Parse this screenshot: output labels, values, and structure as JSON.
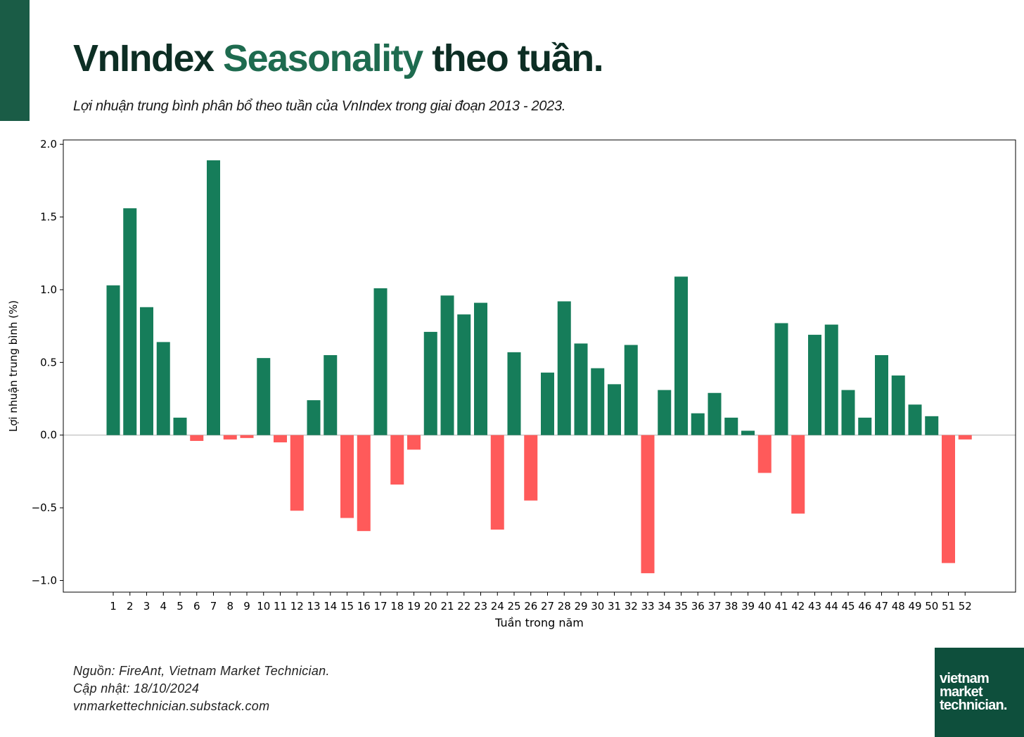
{
  "header": {
    "title_part1": "VnIndex ",
    "title_accent": "Seasonality",
    "title_part2": " theo tuần.",
    "subtitle": "Lợi nhuận trung bình phân bổ theo tuần của VnIndex trong giai đoạn 2013 - 2023."
  },
  "footer": {
    "source": "Nguồn: FireAnt, Vietnam Market Technician.",
    "updated": "Cập nhật: 18/10/2024",
    "website": "vnmarkettechnician.substack.com"
  },
  "logo": {
    "line1": "vietnam",
    "line2": "market",
    "line3": "technician."
  },
  "colors": {
    "positive": "#167d5a",
    "negative": "#ff5a5a",
    "accent": "#1e6b4f",
    "title": "#0d2e24",
    "corner": "#1a5c46",
    "logo_bg": "#0e4f3c"
  },
  "chart_data": {
    "type": "bar",
    "xlabel": "Tuần trong năm",
    "ylabel": "Lợi nhuận trung bình (%)",
    "ylim": [
      -1.08,
      2.03
    ],
    "yticks": [
      -1.0,
      -0.5,
      0.0,
      0.5,
      1.0,
      1.5,
      2.0
    ],
    "ytick_labels": [
      "−1.0",
      "−0.5",
      "0.0",
      "0.5",
      "1.0",
      "1.5",
      "2.0"
    ],
    "grid": false,
    "categories": [
      "1",
      "2",
      "3",
      "4",
      "5",
      "6",
      "7",
      "8",
      "9",
      "10",
      "11",
      "12",
      "13",
      "14",
      "15",
      "16",
      "17",
      "18",
      "19",
      "20",
      "21",
      "22",
      "23",
      "24",
      "25",
      "26",
      "27",
      "28",
      "29",
      "30",
      "31",
      "32",
      "33",
      "34",
      "35",
      "36",
      "37",
      "38",
      "39",
      "40",
      "41",
      "42",
      "43",
      "44",
      "45",
      "46",
      "47",
      "48",
      "49",
      "50",
      "51",
      "52"
    ],
    "values": [
      1.03,
      1.56,
      0.88,
      0.64,
      0.12,
      -0.04,
      1.89,
      -0.03,
      -0.02,
      0.53,
      -0.05,
      -0.52,
      0.24,
      0.55,
      -0.57,
      -0.66,
      1.01,
      -0.34,
      -0.1,
      0.71,
      0.96,
      0.83,
      0.91,
      -0.65,
      0.57,
      -0.45,
      0.43,
      0.92,
      0.63,
      0.46,
      0.35,
      0.62,
      -0.95,
      0.31,
      1.09,
      0.15,
      0.29,
      0.12,
      0.03,
      -0.26,
      0.77,
      -0.54,
      0.69,
      0.76,
      0.31,
      0.12,
      0.55,
      0.41,
      0.21,
      0.13,
      -0.88,
      -0.03
    ]
  }
}
